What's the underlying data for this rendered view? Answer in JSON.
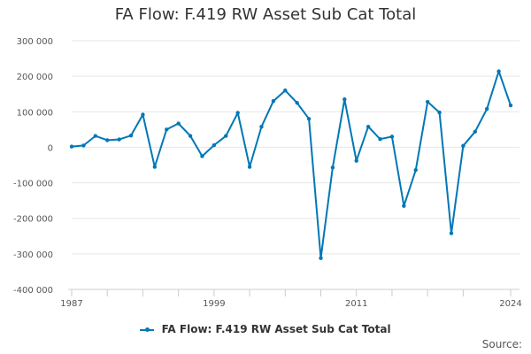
{
  "chart_data": {
    "type": "line",
    "title": "FA Flow: F.419 RW Asset Sub Cat Total",
    "xlabel": "",
    "ylabel": "",
    "ylim": [
      -400000,
      300000
    ],
    "y_ticks": [
      300000,
      200000,
      100000,
      0,
      -100000,
      -200000,
      -300000,
      -400000
    ],
    "y_tick_labels": [
      "300 000",
      "200 000",
      "100 000",
      "0",
      "-100 000",
      "-200 000",
      "-300 000",
      "-400 000"
    ],
    "xlim": [
      1987,
      2024
    ],
    "x_tick_labels": [
      "1987",
      "1999",
      "2011",
      "2024"
    ],
    "x_tick_values": [
      1987,
      1999,
      2011,
      2024
    ],
    "x_minor_ticks": [
      1987,
      1990,
      1993,
      1996,
      1999,
      2002,
      2005,
      2008,
      2011,
      2014,
      2017,
      2020,
      2024
    ],
    "grid": "horizontal",
    "legend_position": "bottom",
    "color": "#0077b6",
    "series": [
      {
        "name": "FA Flow: F.419 RW Asset Sub Cat Total",
        "x": [
          1987,
          1988,
          1989,
          1990,
          1991,
          1992,
          1993,
          1994,
          1995,
          1996,
          1997,
          1998,
          1999,
          2000,
          2001,
          2002,
          2003,
          2004,
          2005,
          2006,
          2007,
          2008,
          2009,
          2010,
          2011,
          2012,
          2013,
          2014,
          2015,
          2016,
          2017,
          2018,
          2019,
          2020,
          2021,
          2022,
          2023,
          2024
        ],
        "values": [
          2000,
          5000,
          32000,
          20000,
          22000,
          33000,
          92000,
          -55000,
          50000,
          67000,
          32000,
          -25000,
          6000,
          32000,
          97000,
          -55000,
          58000,
          130000,
          160000,
          125000,
          80000,
          -312000,
          -57000,
          135000,
          -38000,
          58000,
          23000,
          30000,
          -165000,
          -64000,
          128000,
          98000,
          -242000,
          4000,
          44000,
          108000,
          214000,
          118000
        ]
      }
    ]
  },
  "legend": {
    "label": "FA Flow: F.419 RW Asset Sub Cat Total"
  },
  "footer": {
    "source_label": "Source:"
  }
}
